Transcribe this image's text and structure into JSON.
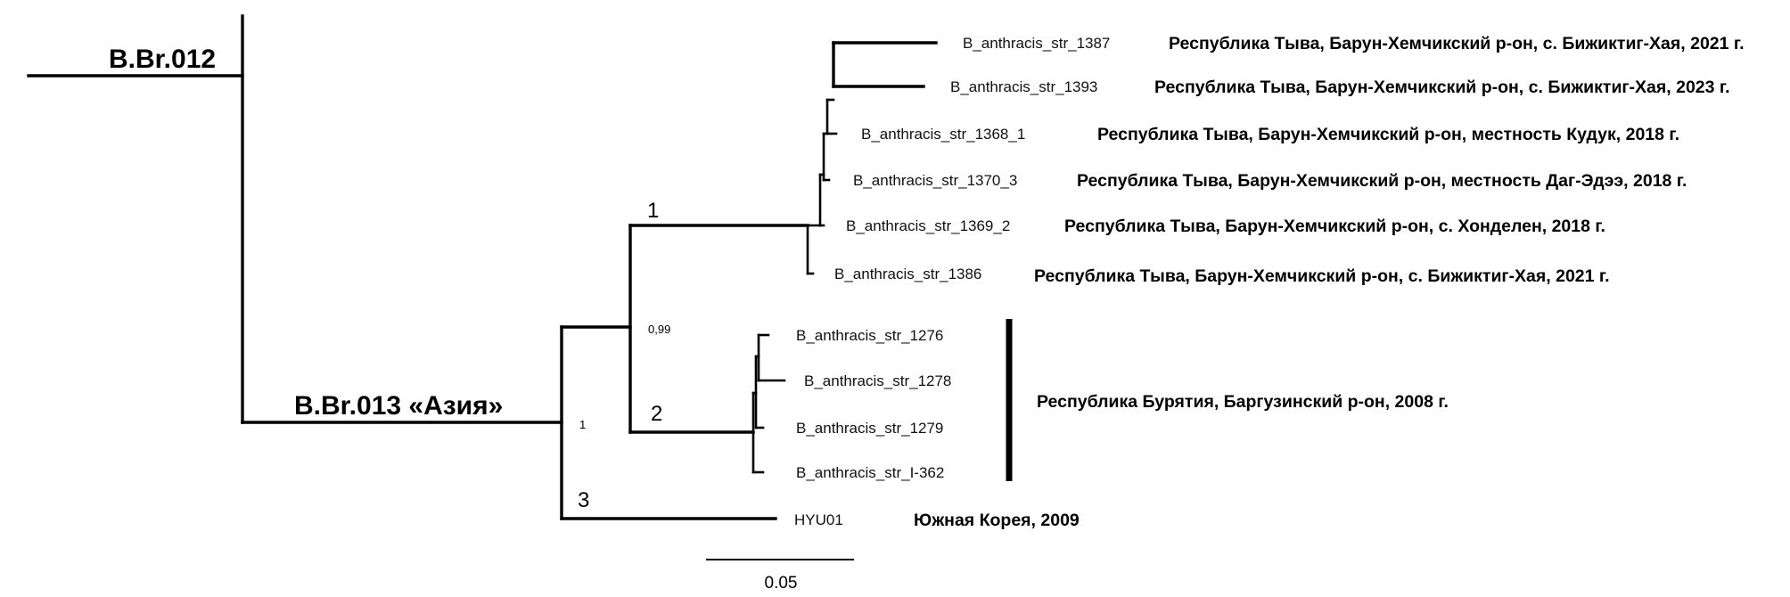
{
  "clades": {
    "root": "B.Br.012",
    "asia": "B.Br.013 «Азия»"
  },
  "cluster_numbers": {
    "c1": "1",
    "c2": "2",
    "c3": "3"
  },
  "support_values": {
    "node_asia": "1",
    "node_c12": "0,99"
  },
  "taxa": [
    {
      "tip": "B_anthracis_str_1387",
      "location": "Республика Тыва, Барун-Хемчикский р-он, с. Бижиктиг-Хая, 2021 г."
    },
    {
      "tip": "B_anthracis_str_1393",
      "location": "Республика Тыва, Барун-Хемчикский р-он, с. Бижиктиг-Хая, 2023 г."
    },
    {
      "tip": "B_anthracis_str_1368_1",
      "location": "Республика Тыва, Барун-Хемчикский р-он, местность Кудук, 2018 г."
    },
    {
      "tip": "B_anthracis_str_1370_3",
      "location": "Республика Тыва, Барун-Хемчикский р-он, местность Даг-Эдээ, 2018 г."
    },
    {
      "tip": "B_anthracis_str_1369_2",
      "location": "Республика Тыва, Барун-Хемчикский р-он, с. Хонделен, 2018 г."
    },
    {
      "tip": "B_anthracis_str_1386",
      "location": "Республика Тыва, Барун-Хемчикский р-он, с. Бижиктиг-Хая, 2021 г."
    },
    {
      "tip": "B_anthracis_str_1276"
    },
    {
      "tip": "B_anthracis_str_1278"
    },
    {
      "tip": "B_anthracis_str_1279"
    },
    {
      "tip": "B_anthracis_str_I-362"
    },
    {
      "tip": "HYU01",
      "location": "Южная Корея, 2009"
    }
  ],
  "buryatia_group": {
    "location": "Республика Бурятия, Баргузинский р-он, 2008 г."
  },
  "scale_bar": {
    "label": "0.05"
  }
}
